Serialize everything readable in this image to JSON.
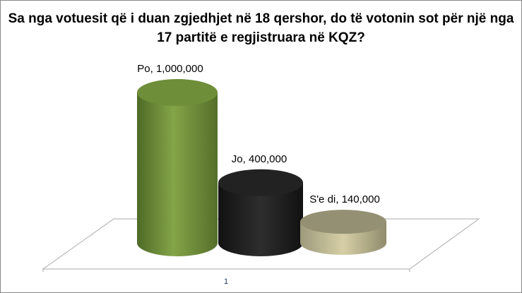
{
  "chart_data": {
    "type": "bar",
    "style": "3d-cylinder",
    "title": "Sa nga votuesit që i duan zgjedhjet në 18 qershor, do të votonin sot për një nga 17 partitë e regjistruara në KQZ?",
    "categories": [
      "1"
    ],
    "series": [
      {
        "name": "Po",
        "values": [
          1000000
        ],
        "color": "#7a9a40",
        "label": "Po,  1,000,000"
      },
      {
        "name": "Jo",
        "values": [
          400000
        ],
        "color": "#262626",
        "label": "Jo,  400,000"
      },
      {
        "name": "S'e di",
        "values": [
          140000
        ],
        "color": "#c8c29a",
        "label": "S'e di,  140,000"
      }
    ],
    "grid": false,
    "legend": "none"
  }
}
